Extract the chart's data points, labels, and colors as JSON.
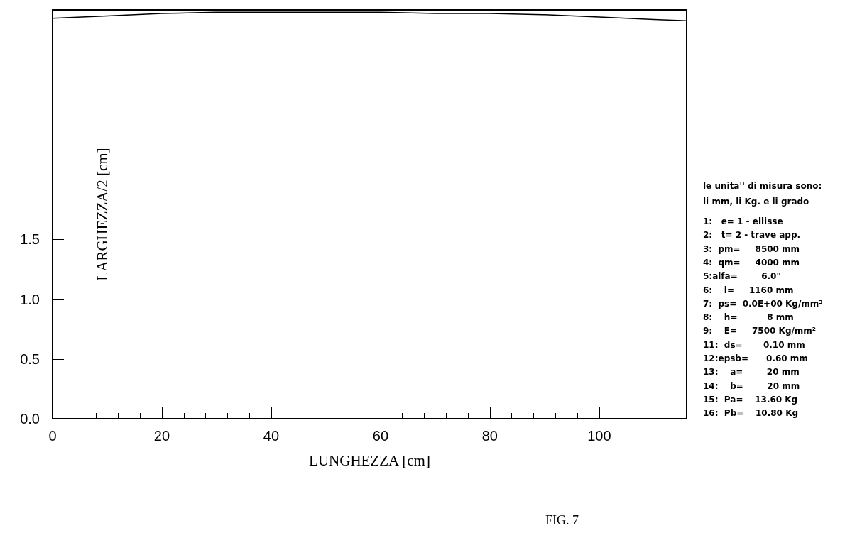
{
  "chart_data": {
    "type": "line",
    "xlabel": "LUNGHEZZA [cm]",
    "ylabel": "LARGHEZZA/2 [cm]",
    "x": [
      0,
      10,
      20,
      30,
      40,
      50,
      60,
      70,
      80,
      90,
      100,
      110,
      116
    ],
    "series": [
      {
        "color": "#000000",
        "values": [
          3.35,
          3.37,
          3.39,
          3.4,
          3.4,
          3.4,
          3.4,
          3.39,
          3.39,
          3.38,
          3.36,
          3.34,
          3.33
        ]
      }
    ],
    "xlim": [
      0,
      116
    ],
    "xticks": [
      0,
      20,
      40,
      60,
      80,
      100
    ],
    "ylim": [
      0,
      3.42
    ],
    "yticks": [
      {
        "value": 0,
        "label": "0.0"
      },
      {
        "value": 0.5,
        "label": "0.5"
      },
      {
        "value": 1,
        "label": "1.0"
      },
      {
        "value": 1.5,
        "label": "1.5"
      }
    ],
    "grid": false,
    "marker": "none",
    "line_style": "solid",
    "annotations": [
      "le unita'' di misura sono:",
      "li mm, li Kg. e li grado",
      "1:   e= 1 - ellisse",
      "2:   t= 2 - trave app.",
      "3:  pm=     8500 mm",
      "4:  qm=     4000 mm",
      "5:alfa=        6.0°",
      "6:    l=     1160 mm",
      "7:  ps=  0.0E+00 Kg/mm³",
      "8:    h=          8 mm",
      "9:    E=     7500 Kg/mm²",
      "11:  ds=       0.10 mm",
      "12:epsb=      0.60 mm",
      "13:    a=        20 mm",
      "14:    b=        20 mm",
      "15:  Pa=    13.60 Kg",
      "16:  Pb=    10.80 Kg",
      "FIG. 7"
    ]
  }
}
